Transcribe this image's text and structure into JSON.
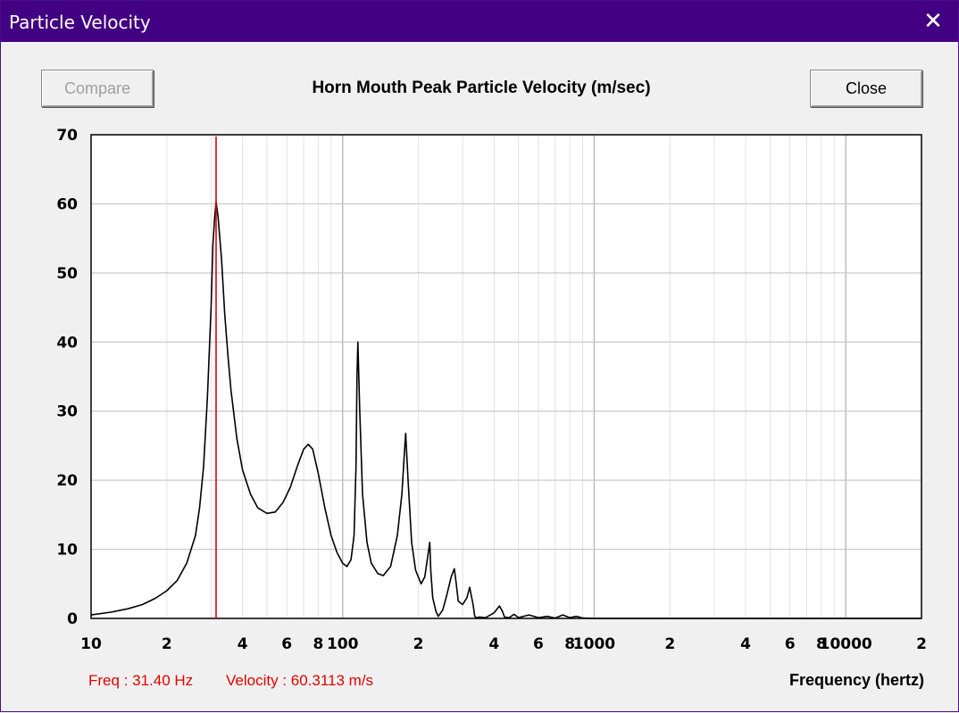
{
  "window": {
    "title": "Particle Velocity"
  },
  "buttons": {
    "compare": "Compare",
    "close": "Close"
  },
  "readout": {
    "freq": "Freq : 31.40 Hz",
    "velocity": "Velocity : 60.3113 m/s"
  },
  "colors": {
    "titlebar": "#420082",
    "cursor": "#e60000",
    "curve": "#000000",
    "grid": "#c8c8c8"
  },
  "chart_data": {
    "type": "line",
    "title": "Horn Mouth Peak Particle Velocity (m/sec)",
    "xlabel": "Frequency (hertz)",
    "ylabel": "",
    "xscale": "log",
    "xlim": [
      10,
      20000
    ],
    "ylim": [
      0,
      70
    ],
    "grid": true,
    "yticks": [
      0,
      10,
      20,
      30,
      40,
      50,
      60,
      70
    ],
    "xticks": [
      {
        "v": 10,
        "label": "10"
      },
      {
        "v": 20,
        "label": "2"
      },
      {
        "v": 40,
        "label": "4"
      },
      {
        "v": 60,
        "label": "6"
      },
      {
        "v": 80,
        "label": "8"
      },
      {
        "v": 100,
        "label": "100"
      },
      {
        "v": 200,
        "label": "2"
      },
      {
        "v": 400,
        "label": "4"
      },
      {
        "v": 600,
        "label": "6"
      },
      {
        "v": 800,
        "label": "8"
      },
      {
        "v": 1000,
        "label": "1000"
      },
      {
        "v": 2000,
        "label": "2"
      },
      {
        "v": 4000,
        "label": "4"
      },
      {
        "v": 6000,
        "label": "6"
      },
      {
        "v": 8000,
        "label": "8"
      },
      {
        "v": 10000,
        "label": "10000"
      },
      {
        "v": 20000,
        "label": "2"
      }
    ],
    "cursor_x": 31.4,
    "series": [
      {
        "x": [
          10,
          12,
          14,
          16,
          18,
          20,
          22,
          24,
          26,
          27,
          28,
          29,
          30,
          30.5,
          31,
          31.4,
          32,
          33,
          34,
          35,
          36,
          38,
          40,
          43,
          46,
          50,
          54,
          58,
          62,
          66,
          70,
          73,
          76,
          80,
          85,
          90,
          95,
          100,
          104,
          108,
          111,
          113,
          114,
          115,
          117,
          120,
          125,
          130,
          138,
          145,
          155,
          165,
          172,
          176,
          178,
          182,
          188,
          195,
          205,
          212,
          218,
          222,
          224,
          228,
          235,
          240,
          250,
          260,
          270,
          278,
          283,
          288,
          300,
          312,
          320,
          330,
          335,
          340,
          350,
          370,
          400,
          420,
          432,
          440,
          460,
          480,
          500,
          550,
          600,
          650,
          700,
          750,
          800,
          850,
          900,
          1000,
          2000,
          5000,
          10000,
          20000
        ],
        "y": [
          0.5,
          0.9,
          1.4,
          2.0,
          2.9,
          4.0,
          5.5,
          8.0,
          12.0,
          16.0,
          22.0,
          32.0,
          45.0,
          54.0,
          58.0,
          60.3,
          58.0,
          52.0,
          44.0,
          38.0,
          33.0,
          26.0,
          21.5,
          18.0,
          16.0,
          15.2,
          15.4,
          16.8,
          19.0,
          22.0,
          24.5,
          25.2,
          24.5,
          21.0,
          16.0,
          12.0,
          9.5,
          8.0,
          7.5,
          8.5,
          12.0,
          22.0,
          35.0,
          40.0,
          30.0,
          18.0,
          11.0,
          8.0,
          6.5,
          6.2,
          7.5,
          12.0,
          18.0,
          24.0,
          26.8,
          20.0,
          11.0,
          7.0,
          5.0,
          6.0,
          9.0,
          11.0,
          7.0,
          3.0,
          1.0,
          0.3,
          1.2,
          3.5,
          6.0,
          7.2,
          5.0,
          2.5,
          2.0,
          3.0,
          4.5,
          2.0,
          0.3,
          0.1,
          0.2,
          0.1,
          0.8,
          1.8,
          1.0,
          0.2,
          0.1,
          0.6,
          0.1,
          0.5,
          0.1,
          0.3,
          0.05,
          0.5,
          0.1,
          0.3,
          0.05,
          0,
          0,
          0,
          0,
          0
        ]
      }
    ]
  }
}
